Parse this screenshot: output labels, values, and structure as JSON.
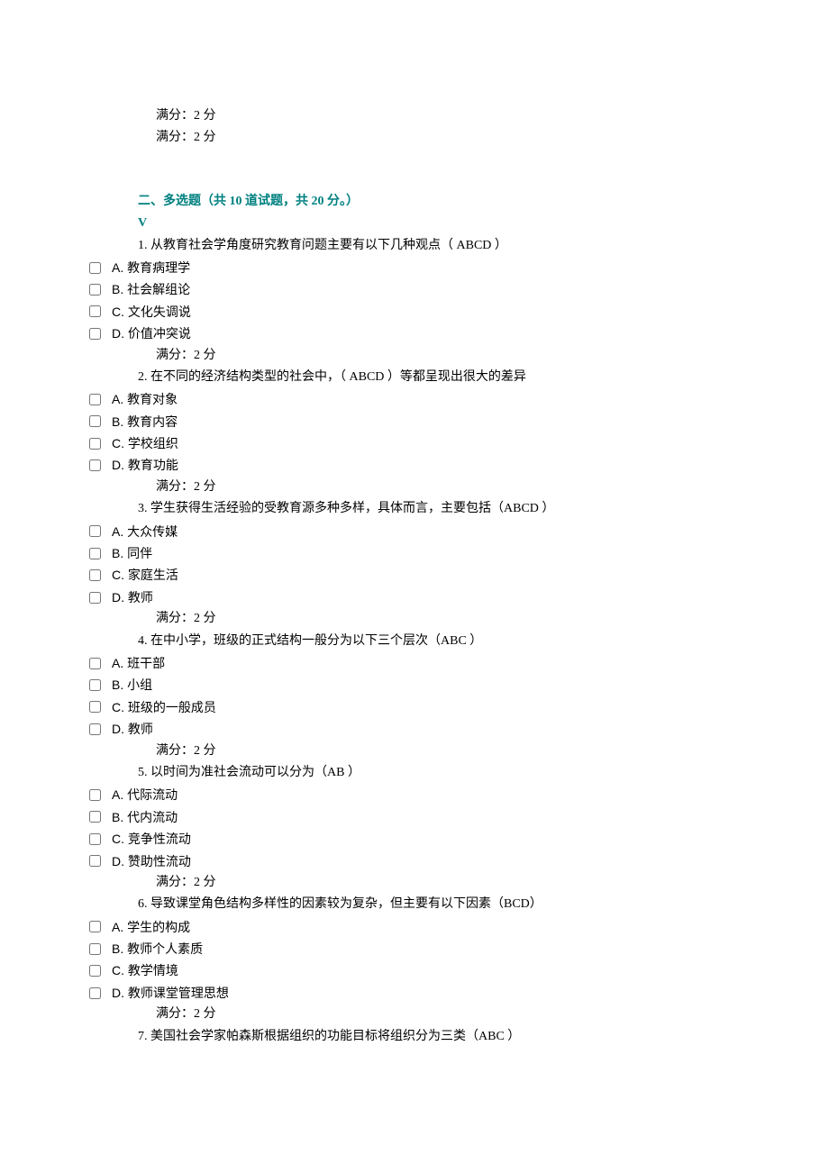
{
  "top_scores": [
    "满分：2 分",
    "满分：2 分"
  ],
  "section": {
    "title": "二、多选题（共 10 道试题，共 20 分。）",
    "v": "V"
  },
  "questions": [
    {
      "text": "1.  从教育社会学角度研究教育问题主要有以下几种观点（    ABCD         ）",
      "options": [
        "A. 教育病理学",
        "B. 社会解组论",
        "C. 文化失调说",
        "D. 价值冲突说"
      ],
      "score": "满分：2 分"
    },
    {
      "text": "2. 在不同的经济结构类型的社会中，（     ABCD       ）等都呈现出很大的差异",
      "options": [
        "A. 教育对象",
        "B. 教育内容",
        "C. 学校组织",
        "D. 教育功能"
      ],
      "score": "满分：2 分"
    },
    {
      "text": "3.  学生获得生活经验的受教育源多种多样，具体而言，主要包括（ABCD  ）",
      "options": [
        "A. 大众传媒",
        "B. 同伴",
        "C. 家庭生活",
        "D. 教师"
      ],
      "score": "满分：2 分"
    },
    {
      "text": "4.  在中小学，班级的正式结构一般分为以下三个层次（ABC  ）",
      "options": [
        "A. 班干部",
        "B. 小组",
        "C. 班级的一般成员",
        "D. 教师"
      ],
      "score": "满分：2 分"
    },
    {
      "text": "5.  以时间为准社会流动可以分为（AB  ）",
      "options": [
        "A. 代际流动",
        "B. 代内流动",
        "C. 竞争性流动",
        "D. 赞助性流动"
      ],
      "score": "满分：2 分"
    },
    {
      "text": "6.  导致课堂角色结构多样性的因素较为复杂，但主要有以下因素（BCD）",
      "options": [
        "A. 学生的构成",
        "B. 教师个人素质",
        "C. 教学情境",
        "D. 教师课堂管理思想"
      ],
      "score": "满分：2 分"
    },
    {
      "text": "7.  美国社会学家帕森斯根据组织的功能目标将组织分为三类（ABC  ）",
      "options": [],
      "score": ""
    }
  ]
}
